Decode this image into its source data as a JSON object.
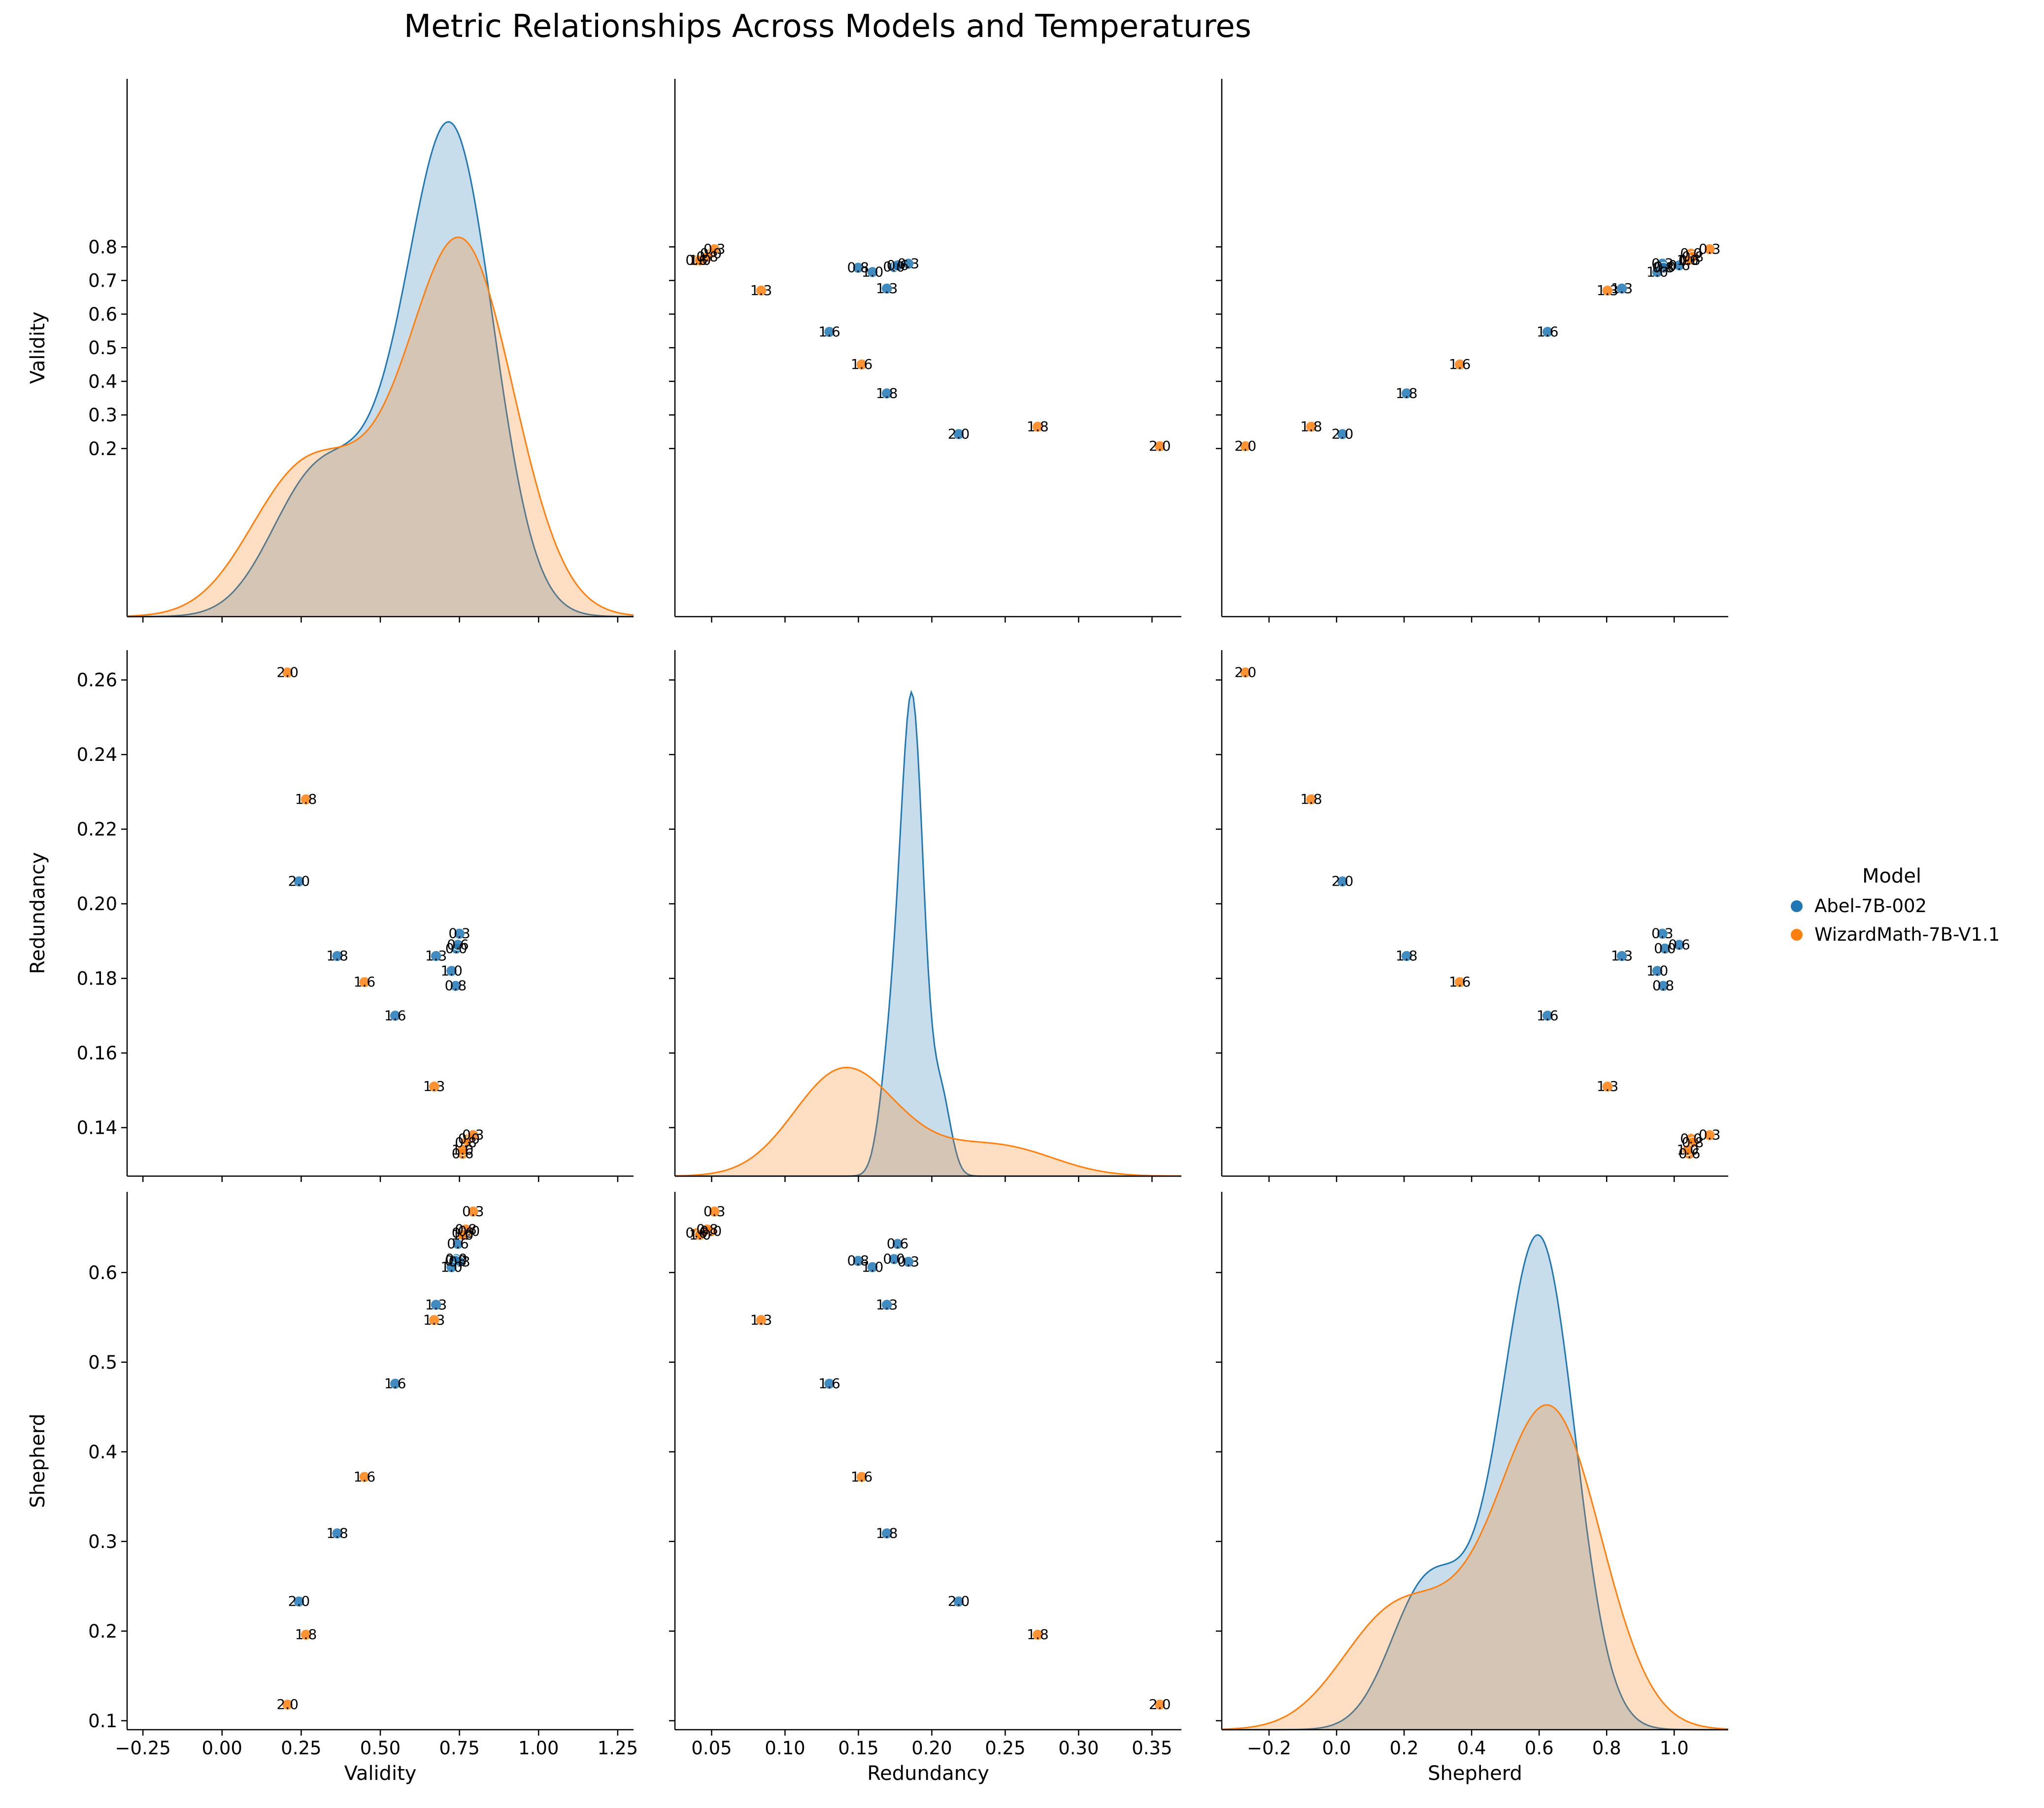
{
  "title": "Metric Relationships Across Models and Temperatures",
  "variables": [
    "Validity",
    "Redundancy",
    "Shepherd"
  ],
  "legend": {
    "title": "Model",
    "placement": "right",
    "entries": [
      {
        "name": "Abel-7B-002",
        "color": "#1f77b4"
      },
      {
        "name": "WizardMath-7B-V1.1",
        "color": "#ff7f0e"
      }
    ]
  },
  "ticks": {
    "Validity_x": [
      "−0.25",
      "0.00",
      "0.25",
      "0.50",
      "0.75",
      "1.00",
      "1.25"
    ],
    "Validity_y": [
      "0.2",
      "0.3",
      "0.4",
      "0.5",
      "0.6",
      "0.7",
      "0.8"
    ],
    "Redundancy_x": [
      "0.05",
      "0.10",
      "0.15",
      "0.20",
      "0.25",
      "0.30",
      "0.35"
    ],
    "Redundancy_y": [
      "0.14",
      "0.16",
      "0.18",
      "0.20",
      "0.22",
      "0.24",
      "0.26"
    ],
    "Shepherd_x": [
      "−0.2",
      "0.0",
      "0.2",
      "0.4",
      "0.6",
      "0.8",
      "1.0"
    ],
    "Shepherd_y": [
      "0.1",
      "0.2",
      "0.3",
      "0.4",
      "0.5",
      "0.6"
    ]
  },
  "chart_data": {
    "type": "scatter",
    "subtype": "pairplot",
    "diagonal": "kde",
    "axis_ranges": {
      "Validity": [
        -0.3,
        1.3
      ],
      "Redundancy": [
        0.127,
        0.268
      ],
      "Shepherd": [
        0.09,
        0.69
      ]
    },
    "diag_ranges": {
      "Validity": [
        -0.3,
        1.3
      ],
      "Redundancy": [
        0.025,
        0.37
      ],
      "Shepherd": [
        -0.34,
        1.16
      ]
    },
    "grid": false,
    "series": [
      {
        "name": "Abel-7B-002",
        "color": "#1f77b4",
        "points": [
          {
            "label": "0.0",
            "Validity": 0.74,
            "Redundancy": 0.188,
            "Shepherd": 0.615
          },
          {
            "label": "0.3",
            "Validity": 0.75,
            "Redundancy": 0.192,
            "Shepherd": 0.612
          },
          {
            "label": "0.6",
            "Validity": 0.745,
            "Redundancy": 0.189,
            "Shepherd": 0.632
          },
          {
            "label": "0.8",
            "Validity": 0.738,
            "Redundancy": 0.178,
            "Shepherd": 0.613
          },
          {
            "label": "1.0",
            "Validity": 0.725,
            "Redundancy": 0.182,
            "Shepherd": 0.606
          },
          {
            "label": "1.3",
            "Validity": 0.676,
            "Redundancy": 0.186,
            "Shepherd": 0.564
          },
          {
            "label": "1.6",
            "Validity": 0.547,
            "Redundancy": 0.17,
            "Shepherd": 0.476
          },
          {
            "label": "1.8",
            "Validity": 0.364,
            "Redundancy": 0.186,
            "Shepherd": 0.309
          },
          {
            "label": "2.0",
            "Validity": 0.243,
            "Redundancy": 0.206,
            "Shepherd": 0.233
          }
        ]
      },
      {
        "name": "WizardMath-7B-V1.1",
        "color": "#ff7f0e",
        "points": [
          {
            "label": "0.0",
            "Validity": 0.78,
            "Redundancy": 0.137,
            "Shepherd": 0.646
          },
          {
            "label": "0.3",
            "Validity": 0.793,
            "Redundancy": 0.138,
            "Shepherd": 0.668
          },
          {
            "label": "0.6",
            "Validity": 0.76,
            "Redundancy": 0.133,
            "Shepherd": 0.644
          },
          {
            "label": "0.8",
            "Validity": 0.77,
            "Redundancy": 0.136,
            "Shepherd": 0.648
          },
          {
            "label": "1.0",
            "Validity": 0.76,
            "Redundancy": 0.134,
            "Shepherd": 0.642
          },
          {
            "label": "1.3",
            "Validity": 0.67,
            "Redundancy": 0.151,
            "Shepherd": 0.547
          },
          {
            "label": "1.6",
            "Validity": 0.45,
            "Redundancy": 0.179,
            "Shepherd": 0.372
          },
          {
            "label": "1.8",
            "Validity": 0.265,
            "Redundancy": 0.228,
            "Shepherd": 0.196
          },
          {
            "label": "2.0",
            "Validity": 0.207,
            "Redundancy": 0.262,
            "Shepherd": 0.118
          }
        ]
      }
    ]
  }
}
